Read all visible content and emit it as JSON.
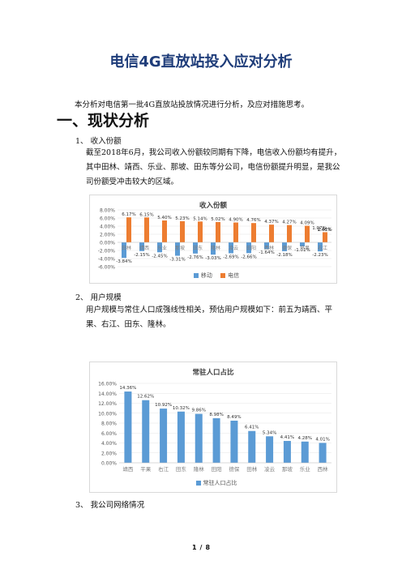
{
  "doc": {
    "title": "电信4G直放站投入应对分析",
    "intro": "本分析对电信第一批4G直放站投放情况进行分析，及应对措施思考。",
    "section_heading": "一、现状分析",
    "sub1": "1、 收入份额",
    "para1": "截至2018年6月，我公司收入份额较同期有下降，电信收入份额均有提升，其中田林、靖西、乐业、那坡、田东等分公司，电信份额提升明显，是我公司份额受冲击较大的区域。",
    "sub2": "2、 用户规模",
    "para2": "用户规模与常住人口成强线性相关，预估用户规模如下：前五为靖西、平果、右江、田东、隆林。",
    "sub3": "3、 我公司网络情况",
    "page": {
      "current": "1",
      "sep": "/",
      "total": "8"
    }
  },
  "colors": {
    "blue": "#5b9bd5",
    "orange": "#ed7d31",
    "title": "#1f3d7a"
  },
  "chart_data": [
    {
      "type": "bar",
      "title": "收入份额",
      "categories": [
        "田林",
        "靖西",
        "乐业",
        "那坡",
        "田东",
        "隆林",
        "凌云",
        "田阳",
        "西林",
        "德保",
        "平果",
        "右江"
      ],
      "series": [
        {
          "name": "移动",
          "values": [
            -3.84,
            -2.15,
            -2.45,
            -3.31,
            -2.76,
            -3.03,
            -2.69,
            -2.66,
            -1.64,
            -2.18,
            -1.01,
            -2.23
          ]
        },
        {
          "name": "电信",
          "values": [
            6.17,
            6.15,
            5.4,
            5.23,
            5.14,
            5.02,
            4.9,
            4.76,
            4.37,
            4.27,
            4.09,
            2.51
          ]
        }
      ],
      "extra_labels": [
        "1.07%",
        "1.46%"
      ],
      "yticks": [
        "8.00%",
        "6.00%",
        "4.00%",
        "2.00%",
        "0.00%",
        "-2.00%",
        "-4.00%",
        "-6.00%"
      ],
      "ylim": [
        -6,
        8
      ],
      "legend_position": "bottom"
    },
    {
      "type": "bar",
      "title": "常驻人口占比",
      "categories": [
        "靖西",
        "平果",
        "右江",
        "田东",
        "隆林",
        "田阳",
        "德保",
        "田林",
        "凌云",
        "那坡",
        "乐业",
        "西林"
      ],
      "series": [
        {
          "name": "常驻人口占比",
          "values": [
            14.36,
            12.62,
            10.92,
            10.32,
            9.86,
            8.98,
            8.49,
            6.41,
            5.34,
            4.41,
            4.28,
            4.01
          ]
        }
      ],
      "yticks": [
        "16.00%",
        "14.00%",
        "12.00%",
        "10.00%",
        "8.00%",
        "6.00%",
        "4.00%",
        "2.00%",
        "0.00%"
      ],
      "ylim": [
        0,
        16
      ],
      "legend_position": "bottom"
    }
  ]
}
